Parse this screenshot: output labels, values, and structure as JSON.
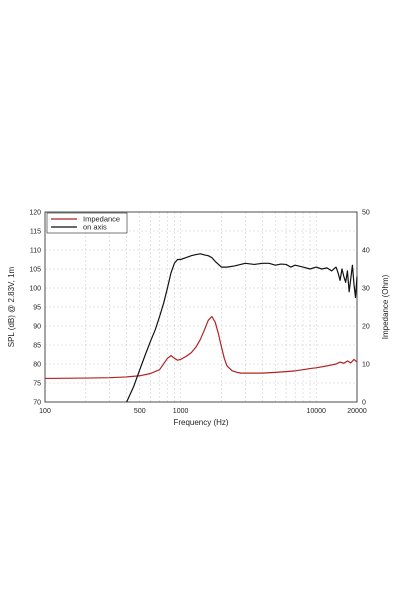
{
  "chart_data": {
    "type": "line",
    "title": "",
    "xlabel": "Frequency (Hz)",
    "ylabel_left": "SPL (dB) @ 2.83V, 1m",
    "ylabel_right": "Impedance (Ohm)",
    "x_scale": "log",
    "xlim": [
      100,
      20000
    ],
    "ylim_left": [
      70,
      120
    ],
    "ylim_right": [
      0,
      50
    ],
    "x_tick_labels": [
      "100",
      "500",
      "1000",
      "10000",
      "20000"
    ],
    "x_tick_values": [
      100,
      500,
      1000,
      10000,
      20000
    ],
    "y_left_ticks": [
      70,
      75,
      80,
      85,
      90,
      95,
      100,
      105,
      110,
      115,
      120
    ],
    "y_right_ticks": [
      0,
      10,
      20,
      30,
      40,
      50
    ],
    "grid": true,
    "legend_position": "top-left",
    "series": [
      {
        "name": "Impedance",
        "axis": "right",
        "color": "#b22222",
        "x": [
          100,
          200,
          300,
          400,
          500,
          600,
          700,
          800,
          850,
          900,
          950,
          1000,
          1100,
          1200,
          1300,
          1400,
          1500,
          1600,
          1700,
          1800,
          1900,
          2000,
          2100,
          2200,
          2400,
          2600,
          2800,
          3000,
          3500,
          4000,
          5000,
          6000,
          7000,
          8000,
          9000,
          10000,
          12000,
          14000,
          15000,
          16000,
          17000,
          18000,
          19000,
          20000
        ],
        "values": [
          6.2,
          6.3,
          6.4,
          6.6,
          6.9,
          7.5,
          8.5,
          11.5,
          12.2,
          11.5,
          11,
          11.2,
          12,
          13,
          14.5,
          16.5,
          19,
          21.5,
          22.5,
          21,
          18,
          14.5,
          11.5,
          9.5,
          8.2,
          7.8,
          7.6,
          7.6,
          7.6,
          7.6,
          7.8,
          8,
          8.2,
          8.5,
          8.8,
          9,
          9.5,
          10,
          10.5,
          10.2,
          10.8,
          10.3,
          11.2,
          10.5
        ]
      },
      {
        "name": "on axis",
        "axis": "left",
        "color": "#111111",
        "x": [
          400,
          450,
          500,
          550,
          600,
          650,
          700,
          750,
          800,
          850,
          900,
          950,
          1000,
          1100,
          1200,
          1300,
          1400,
          1500,
          1600,
          1700,
          1800,
          2000,
          2200,
          2500,
          3000,
          3500,
          4000,
          4500,
          5000,
          5500,
          6000,
          6500,
          7000,
          8000,
          9000,
          10000,
          11000,
          12000,
          13000,
          14000,
          14500,
          15000,
          15500,
          16000,
          16500,
          17000,
          17500,
          18000,
          18500,
          19000,
          19500,
          20000
        ],
        "values": [
          70,
          74,
          78.5,
          82.5,
          86,
          89,
          92.5,
          96,
          100,
          104,
          106.5,
          107.5,
          107.5,
          108,
          108.5,
          108.8,
          109,
          108.7,
          108.5,
          108,
          107,
          105.5,
          105.5,
          105.8,
          106.5,
          106.2,
          106.5,
          106.5,
          106,
          106.3,
          106.2,
          105.5,
          106,
          105.5,
          105,
          105.5,
          105,
          105.3,
          104.5,
          105.5,
          104,
          102,
          105,
          103,
          101.5,
          104.5,
          99,
          102.5,
          106,
          101,
          97.5,
          103
        ]
      }
    ]
  }
}
